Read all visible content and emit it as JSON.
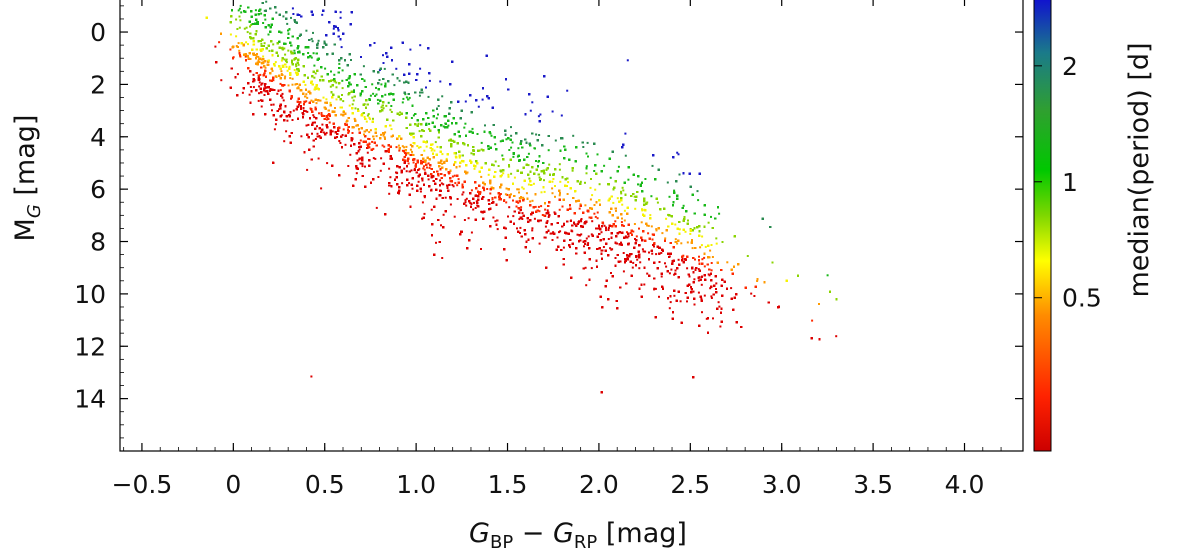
{
  "chart_data": {
    "type": "heatmap",
    "xlabel": "G_BP − G_RP [mag]",
    "ylabel": "M_G [mag]",
    "xlim": [
      -0.62,
      4.32
    ],
    "ylim": [
      16.0,
      -1.3
    ],
    "y_inverted": true,
    "x_ticks": [
      -0.5,
      0,
      0.5,
      1.0,
      1.5,
      2.0,
      2.5,
      3.0,
      3.5,
      4.0
    ],
    "x_tick_labels": [
      "−0.5",
      "0",
      "0.5",
      "1.0",
      "1.5",
      "2.0",
      "2.5",
      "3.0",
      "3.5",
      "4.0"
    ],
    "y_ticks": [
      0,
      2,
      4,
      6,
      8,
      10,
      12,
      14
    ],
    "y_tick_labels": [
      "0",
      "2",
      "4",
      "6",
      "8",
      "10",
      "12",
      "14"
    ],
    "grid": false,
    "colorbar": {
      "label": "median(period) [d]",
      "scale": "log",
      "range": [
        0.2,
        3.0
      ],
      "ticks": [
        0.5,
        1,
        2
      ],
      "tick_labels": [
        "0.5",
        "1",
        "2"
      ],
      "colormap": [
        "#cc0000",
        "#ff2200",
        "#ff8c00",
        "#ffff00",
        "#7fd700",
        "#00c800",
        "#2fa02f",
        "#1a7a8a",
        "#1010d0"
      ]
    },
    "distribution": {
      "description_of_trend": "dense diagonal main-sequence band; median period increases from lower-left/red (short) toward upper band (long)",
      "band_ridge": [
        {
          "x": 0.0,
          "y": 0.2
        },
        {
          "x": 0.5,
          "y": 2.6
        },
        {
          "x": 1.0,
          "y": 4.7
        },
        {
          "x": 1.5,
          "y": 6.1
        },
        {
          "x": 2.0,
          "y": 7.1
        },
        {
          "x": 2.5,
          "y": 8.6
        },
        {
          "x": 2.9,
          "y": 10.0
        }
      ]
    }
  }
}
